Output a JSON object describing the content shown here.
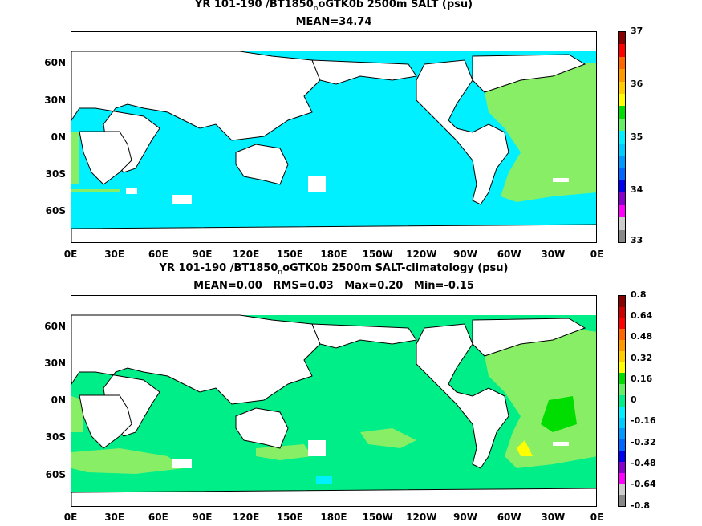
{
  "panel1": {
    "title_pre": "YR 101-190 /BT1850",
    "title_sub": "n",
    "title_post": "oGTK0b 2500m SALT (psu)",
    "stats": "MEAN=34.74",
    "ocean_color": "#00f0ff",
    "highlight_color": "#88ee66",
    "colorbar_labels": [
      "37",
      "36",
      "35",
      "34",
      "33"
    ],
    "colorbar_colors": [
      "#880000",
      "#ff0000",
      "#ff6600",
      "#ff9900",
      "#ffcc00",
      "#ffff00",
      "#00dd00",
      "#66ee66",
      "#00f0ff",
      "#00ccff",
      "#0099ff",
      "#0066ff",
      "#0000ee",
      "#8800cc",
      "#ff00ff",
      "#cccccc",
      "#888888"
    ]
  },
  "panel2": {
    "title_pre": "YR 101-190 /BT1850",
    "title_sub": "n",
    "title_post": "oGTK0b 2500m SALT-climatology (psu)",
    "stats": "MEAN=0.00   RMS=0.03   Max=0.20   Min=-0.15",
    "ocean_color": "#00ee88",
    "highlight_color": "#88ee66",
    "colorbar_labels": [
      "0.8",
      "0.64",
      "0.48",
      "0.32",
      "0.16",
      "0",
      "-0.16",
      "-0.32",
      "-0.48",
      "-0.64",
      "-0.8"
    ],
    "colorbar_colors": [
      "#880000",
      "#cc0000",
      "#ff0000",
      "#ff6600",
      "#ff9900",
      "#ffcc00",
      "#ffff00",
      "#00dd00",
      "#66ee66",
      "#00ee88",
      "#00f0ff",
      "#00ccff",
      "#0099ff",
      "#0066ff",
      "#0000ee",
      "#8800cc",
      "#ff00ff",
      "#cccccc",
      "#888888"
    ]
  },
  "axes": {
    "y_labels": [
      "60N",
      "30N",
      "0N",
      "30S",
      "60S"
    ],
    "x_labels": [
      "0E",
      "30E",
      "60E",
      "90E",
      "120E",
      "150E",
      "180E",
      "150W",
      "120W",
      "90W",
      "60W",
      "30W",
      "0E"
    ]
  }
}
